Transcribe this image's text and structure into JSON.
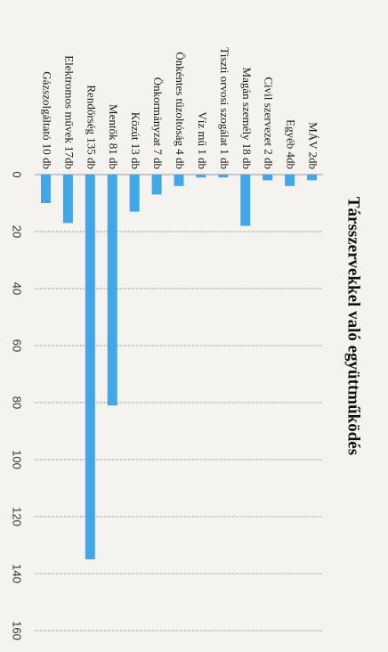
{
  "chart_data": {
    "type": "bar",
    "orientation": "horizontal",
    "title": "Társszervekkel való együttműködés",
    "categories": [
      "MÁV 2db",
      "Egyéb 4db",
      "Civil szervezet  2 db",
      "Magán személy 18 db",
      "Tiszti orvosi szogálat 1 db",
      "Víz mű 1 db",
      "Önkéntes tűzoltóság 4 db",
      "Önkormányzat 7 db",
      "Közút 13 db",
      "Mentők 81 db",
      "Rendőrség 135 db",
      "Elektromos művek  17db",
      "Gázszolgáltató 10 db"
    ],
    "values": [
      2,
      4,
      2,
      18,
      1,
      1,
      4,
      7,
      13,
      81,
      135,
      17,
      10
    ],
    "xlim": [
      0,
      160
    ],
    "ticks": [
      0,
      20,
      40,
      60,
      80,
      100,
      120,
      140,
      160
    ],
    "grid": true,
    "colors": {
      "bar": "#41a7e6"
    }
  }
}
